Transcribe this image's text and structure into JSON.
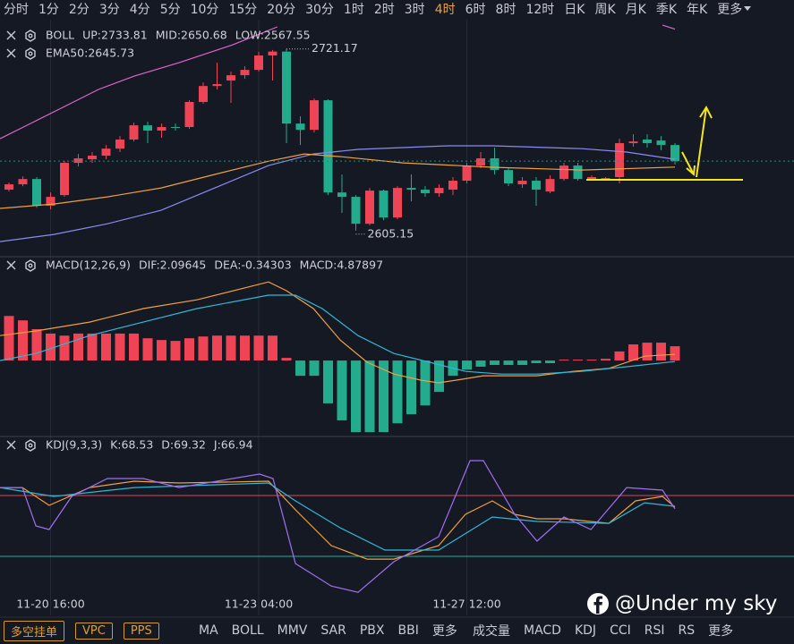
{
  "toolbar": {
    "periods": [
      "分时",
      "1分",
      "2分",
      "3分",
      "4分",
      "5分",
      "10分",
      "15分",
      "20分",
      "30分",
      "1时",
      "2时",
      "3时",
      "4时",
      "6时",
      "8时",
      "12时",
      "日K",
      "周K",
      "月K",
      "季K",
      "年K",
      "更多"
    ],
    "active": 13
  },
  "chart_data": [
    {
      "type": "candlestick",
      "title": "BOLL",
      "xlim": [
        -0.645,
        56.58
      ],
      "ylim": [
        2589.6,
        2735.3
      ],
      "up_color": "#ee4455",
      "down_color": "#22ab8c",
      "open": [
        2631.3,
        2634.7,
        2638.1,
        2621.0,
        2627.8,
        2648.4,
        2650.7,
        2653.0,
        2657.5,
        2663.3,
        2672.4,
        2669.0,
        2671.3,
        2671.3,
        2687.3,
        2697.5,
        2701.0,
        2704.4,
        2707.8,
        2717.0,
        2719.5,
        2673.5,
        2669.5,
        2688.4,
        2629.5,
        2626.7,
        2609.5,
        2630.7,
        2613.5,
        2632.4,
        2631.3,
        2629.0,
        2631.3,
        2637.0,
        2646.7,
        2651.3,
        2643.8,
        2634.7,
        2637.0,
        2630.1,
        2638.1,
        2646.7,
        2638.1,
        2638.1,
        2639.3,
        2661.0,
        2663.3,
        2662.7,
        2659.8
      ],
      "high": [
        2635.8,
        2639.8,
        2639.3,
        2629.5,
        2649.5,
        2654.1,
        2655.3,
        2659.8,
        2665.5,
        2674.1,
        2674.7,
        2673.5,
        2673.5,
        2688.4,
        2699.8,
        2712.4,
        2706.7,
        2710.1,
        2719.3,
        2720.5,
        2721.17,
        2678.1,
        2689.5,
        2689.0,
        2641.0,
        2627.8,
        2632.4,
        2631.3,
        2633.5,
        2641.0,
        2633.5,
        2634.7,
        2639.3,
        2648.4,
        2655.3,
        2658.1,
        2645.0,
        2639.3,
        2639.3,
        2640.4,
        2648.4,
        2648.4,
        2640.4,
        2639.3,
        2663.8,
        2666.7,
        2666.7,
        2665.5,
        2661.0
      ],
      "low": [
        2630.1,
        2633.5,
        2619.8,
        2618.7,
        2626.7,
        2646.1,
        2648.4,
        2650.7,
        2655.3,
        2662.1,
        2661.0,
        2664.4,
        2669.0,
        2670.1,
        2686.1,
        2695.3,
        2686.7,
        2702.1,
        2706.7,
        2701.0,
        2661.0,
        2659.8,
        2667.8,
        2627.8,
        2616.4,
        2605.15,
        2608.4,
        2611.8,
        2612.4,
        2623.8,
        2626.7,
        2626.7,
        2627.8,
        2635.3,
        2645.0,
        2641.0,
        2633.5,
        2632.4,
        2621.0,
        2629.0,
        2637.0,
        2637.0,
        2637.0,
        2637.0,
        2635.3,
        2658.7,
        2658.1,
        2656.4,
        2647.3
      ],
      "close": [
        2634.7,
        2638.1,
        2621.0,
        2626.7,
        2648.4,
        2651.3,
        2653.0,
        2657.5,
        2663.3,
        2672.4,
        2669.0,
        2671.3,
        2671.0,
        2687.3,
        2697.5,
        2698.7,
        2704.4,
        2707.8,
        2717.0,
        2719.5,
        2673.5,
        2669.5,
        2688.4,
        2629.5,
        2626.7,
        2609.5,
        2630.7,
        2613.5,
        2632.4,
        2631.3,
        2629.0,
        2632.4,
        2637.0,
        2646.7,
        2651.3,
        2643.8,
        2635.3,
        2637.0,
        2631.3,
        2638.1,
        2646.7,
        2638.1,
        2639.3,
        2638.7,
        2661.0,
        2662.1,
        2661.0,
        2659.8,
        2649.5
      ],
      "xticks": [
        {
          "value": 3,
          "label": "11-20 16:00"
        },
        {
          "value": 18,
          "label": "11-23 04:00"
        },
        {
          "value": 33,
          "label": "11-27 12:00"
        }
      ],
      "series": [
        {
          "name": "UP:2733.81",
          "color": "#e066c8",
          "x": [
            -0.645,
            1.29,
            3.87,
            6.45,
            9.03,
            12.26,
            16.13,
            19.35,
            33,
            47.1,
            48
          ],
          "values": [
            2663.8,
            2672.4,
            2683.8,
            2695.3,
            2703.8,
            2712.4,
            2723.8,
            2735.3,
            null,
            2736.4,
            2733.81
          ]
        },
        {
          "name": "MID:2650.68",
          "color": "#8a8cf0",
          "x": [
            -0.645,
            3.23,
            7.1,
            10.97,
            14.84,
            18.71,
            21.94,
            25.16,
            31.61,
            34.84,
            41.29,
            44.52,
            48
          ],
          "values": [
            2598.1,
            2602.7,
            2609.5,
            2618.1,
            2632.4,
            2646.7,
            2654.1,
            2657.0,
            2659.3,
            2659.3,
            2657.5,
            2655.3,
            2650.68
          ]
        },
        {
          "name": "LOW:2567.55",
          "color": "#f0a040"
        },
        {
          "name": "EMA50:2645.73",
          "color": "#f0a040",
          "x": [
            -0.645,
            3.23,
            7.1,
            10.97,
            14.84,
            18.71,
            21.29,
            23.87,
            28.39,
            34.84,
            41.29,
            48
          ],
          "values": [
            2619.3,
            2622.1,
            2626.7,
            2632.4,
            2641.0,
            2649.5,
            2654.1,
            2652.4,
            2648.4,
            2645.6,
            2643.8,
            2645.73
          ]
        }
      ]
    },
    {
      "type": "bar_line",
      "title": "MACD(12,26,9)",
      "ylim": [
        -25.9,
        35.1
      ],
      "bars": {
        "name": "MACD:4.87897",
        "color": "#b27cf0",
        "up_color": "#ee4455",
        "down_color": "#22ab8c",
        "values": [
          15.2,
          13.7,
          10.7,
          9.2,
          8.5,
          9.2,
          9.2,
          9.2,
          9.2,
          9.2,
          7.6,
          7.0,
          6.7,
          7.6,
          8.2,
          8.5,
          8.5,
          8.5,
          8.5,
          8.5,
          0.9,
          -5.2,
          -5.2,
          -14.6,
          -20.4,
          -24.4,
          -24.4,
          -24.4,
          -21.4,
          -18.3,
          -15.3,
          -10.7,
          -5.2,
          -3.1,
          -2.1,
          -1.5,
          -1.5,
          -1.5,
          -0.9,
          -0.9,
          0.3,
          0.3,
          0.3,
          0.6,
          3.1,
          5.5,
          6.1,
          6.1,
          4.87897
        ]
      },
      "series": [
        {
          "name": "DIF:2.09645",
          "color": "#f0a040",
          "x": [
            -0.645,
            1.94,
            5.81,
            9.68,
            13.55,
            18.71,
            20,
            21.94,
            23.87,
            25.81,
            27.74,
            29.68,
            30.97,
            32.26,
            34.19,
            38.06,
            40.65,
            43.23,
            45.81,
            48
          ],
          "values": [
            8.5,
            10.1,
            13.1,
            17.7,
            20.7,
            26.8,
            23.8,
            17.7,
            7.0,
            -0.6,
            -4.6,
            -6.7,
            -7.6,
            -6.7,
            -5.2,
            -5.2,
            -3.7,
            -2.7,
            1.5,
            2.09645
          ]
        },
        {
          "name": "DEA:-0.34303",
          "color": "#30b8d8",
          "x": [
            -0.645,
            1.94,
            5.81,
            9.68,
            13.55,
            18.71,
            20.65,
            22.58,
            25.16,
            27.74,
            30.32,
            32.9,
            35.48,
            38.06,
            41.29,
            44.52,
            48
          ],
          "values": [
            0,
            2.4,
            8.5,
            13.1,
            17.7,
            22.3,
            22.3,
            17.7,
            8.5,
            2.4,
            -0.6,
            -3.7,
            -4.6,
            -4.6,
            -3.7,
            -2.1,
            -0.34303
          ]
        }
      ]
    },
    {
      "type": "line",
      "title": "KDJ(9,3,3)",
      "ylim": [
        -40,
        136.5
      ],
      "hlines": [
        {
          "value": 80,
          "color": "#e04558"
        },
        {
          "value": 20,
          "color": "#22b09a"
        }
      ],
      "series": [
        {
          "name": "K:68.53",
          "color": "#f0a040",
          "x": [
            -0.645,
            0.97,
            2.9,
            5.81,
            9.03,
            12.26,
            18.71,
            20.65,
            23.23,
            25.81,
            27.74,
            30.97,
            32.9,
            34.84,
            36.45,
            38.06,
            40,
            43.23,
            45.16,
            47.1,
            48
          ],
          "values": [
            87.9,
            87.9,
            70.3,
            87.9,
            94.1,
            92.4,
            94.1,
            65.9,
            30.6,
            17.3,
            17.3,
            30.6,
            61.5,
            74.7,
            61.5,
            57.1,
            57.1,
            52.6,
            74.7,
            79.1,
            68.53
          ]
        },
        {
          "name": "D:69.32",
          "color": "#30b8d8",
          "x": [
            -0.645,
            3.23,
            9.03,
            18.71,
            20.65,
            23.87,
            27.1,
            30.97,
            34.84,
            38.06,
            43.23,
            45.81,
            48
          ],
          "values": [
            87.9,
            79.1,
            87.9,
            92.4,
            74.7,
            48.2,
            26.2,
            26.2,
            58.8,
            54.4,
            52.6,
            72.9,
            69.32
          ]
        },
        {
          "name": "J:66.94",
          "color": "#a070f0",
          "x": [
            -0.645,
            0.97,
            1.94,
            2.9,
            4.52,
            7.1,
            9.68,
            12.26,
            18.06,
            19.03,
            20.65,
            23.23,
            25.16,
            27.74,
            30.97,
            33.23,
            34.19,
            36.45,
            38.06,
            40,
            41.94,
            44.52,
            47.1,
            48
          ],
          "values": [
            87.9,
            87.9,
            50.0,
            46.5,
            79.1,
            96.8,
            96.8,
            87.9,
            101.2,
            96.8,
            12.9,
            -9.3,
            -15.5,
            14.7,
            39.4,
            114.4,
            114.4,
            61.5,
            35.0,
            58.8,
            46.5,
            87.9,
            85.3,
            66.94
          ]
        }
      ]
    }
  ],
  "bottom_bar": {
    "buttons": [
      "多空挂单",
      "VPC",
      "PPS"
    ],
    "main_indicators": [
      "MA",
      "BOLL",
      "MMV",
      "SAR",
      "PBX",
      "BBI",
      "更多"
    ],
    "sub_indicators": [
      "成交量",
      "MACD",
      "KDJ",
      "CCI",
      "RSI",
      "RS",
      "更多"
    ]
  },
  "watermark": "@Under my sky"
}
